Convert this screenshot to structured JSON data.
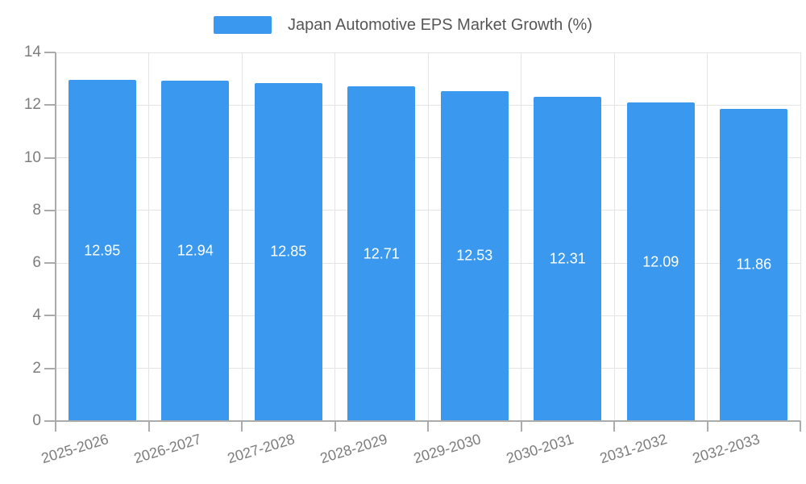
{
  "legend": {
    "label": "Japan Automotive EPS Market Growth (%)"
  },
  "chart_data": {
    "type": "bar",
    "title": "Japan Automotive EPS Market Growth (%)",
    "categories": [
      "2025-2026",
      "2026-2027",
      "2027-2028",
      "2028-2029",
      "2029-2030",
      "2030-2031",
      "2031-2032",
      "2032-2033"
    ],
    "values": [
      12.95,
      12.94,
      12.85,
      12.71,
      12.53,
      12.31,
      12.09,
      11.86
    ],
    "value_labels": [
      "12.95",
      "12.94",
      "12.85",
      "12.71",
      "12.53",
      "12.31",
      "12.09",
      "11.86"
    ],
    "xlabel": "",
    "ylabel": "",
    "ylim": [
      0,
      14
    ],
    "yticks": [
      0,
      2,
      4,
      6,
      8,
      10,
      12,
      14
    ],
    "grid": true,
    "legend_position": "top",
    "bar_color": "#3A99EE",
    "value_label_color": "#ffffff",
    "axis_color": "#ababab",
    "grid_color": "#e4e4e4",
    "tick_label_color": "#7d7d7d",
    "legend_text_color": "#565656"
  }
}
